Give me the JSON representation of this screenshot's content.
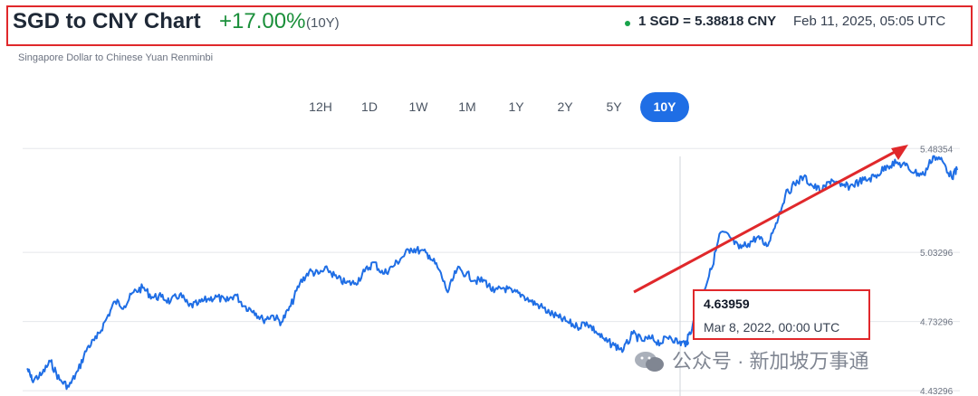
{
  "header": {
    "title": "SGD to CNY Chart",
    "change": "+17.00%",
    "period": "(10Y)",
    "rate": "1 SGD = 5.38818 CNY",
    "timestamp": "Feb 11, 2025, 05:05 UTC",
    "subtitle": "Singapore Dollar to Chinese Yuan Renminbi"
  },
  "ranges": [
    {
      "label": "12H",
      "active": false
    },
    {
      "label": "1D",
      "active": false
    },
    {
      "label": "1W",
      "active": false
    },
    {
      "label": "1M",
      "active": false
    },
    {
      "label": "1Y",
      "active": false
    },
    {
      "label": "2Y",
      "active": false
    },
    {
      "label": "5Y",
      "active": false
    },
    {
      "label": "10Y",
      "active": true
    }
  ],
  "tooltip": {
    "value": "4.63959",
    "date": "Mar 8, 2022, 00:00 UTC"
  },
  "watermark": "公众号 · 新加坡万事通",
  "colors": {
    "line": "#1f6ee5",
    "arrow": "#e0282b",
    "positive": "#1a8f3a",
    "grid": "#e5e7eb"
  },
  "chart_data": {
    "type": "line",
    "ytick_labels": [
      "5.48354",
      "5.03296",
      "4.73296",
      "4.43296"
    ],
    "yticks": [
      5.48354,
      5.03296,
      4.73296,
      4.43296
    ],
    "ylim": [
      4.41,
      5.52
    ],
    "xlim": [
      2015.0,
      2025.12
    ],
    "grid": true,
    "series": [
      {
        "x": [
          2015.05,
          2015.1,
          2015.2,
          2015.3,
          2015.4,
          2015.5,
          2015.6,
          2015.7,
          2015.8,
          2015.9,
          2016.0,
          2016.1,
          2016.2,
          2016.3,
          2016.4,
          2016.5,
          2016.6,
          2016.7,
          2016.8,
          2016.9,
          2017.0,
          2017.1,
          2017.2,
          2017.3,
          2017.4,
          2017.5,
          2017.6,
          2017.7,
          2017.8,
          2017.9,
          2018.0,
          2018.1,
          2018.2,
          2018.3,
          2018.4,
          2018.5,
          2018.6,
          2018.7,
          2018.8,
          2018.9,
          2019.0,
          2019.1,
          2019.2,
          2019.3,
          2019.4,
          2019.5,
          2019.6,
          2019.7,
          2019.8,
          2019.9,
          2020.0,
          2020.1,
          2020.2,
          2020.3,
          2020.4,
          2020.5,
          2020.6,
          2020.7,
          2020.8,
          2020.9,
          2021.0,
          2021.1,
          2021.2,
          2021.3,
          2021.4,
          2021.5,
          2021.6,
          2021.7,
          2021.8,
          2021.9,
          2022.0,
          2022.1,
          2022.18,
          2022.25,
          2022.35,
          2022.45,
          2022.55,
          2022.65,
          2022.75,
          2022.85,
          2022.95,
          2023.05,
          2023.15,
          2023.25,
          2023.35,
          2023.45,
          2023.55,
          2023.65,
          2023.75,
          2023.85,
          2023.95,
          2024.05,
          2024.15,
          2024.25,
          2024.35,
          2024.45,
          2024.55,
          2024.65,
          2024.75,
          2024.85,
          2024.95,
          2025.05,
          2025.11
        ],
        "y": [
          4.53,
          4.48,
          4.5,
          4.56,
          4.48,
          4.45,
          4.52,
          4.62,
          4.66,
          4.74,
          4.82,
          4.8,
          4.86,
          4.88,
          4.84,
          4.84,
          4.82,
          4.85,
          4.8,
          4.81,
          4.83,
          4.84,
          4.82,
          4.85,
          4.8,
          4.78,
          4.74,
          4.76,
          4.73,
          4.8,
          4.9,
          4.95,
          4.94,
          4.96,
          4.92,
          4.9,
          4.9,
          4.95,
          4.99,
          4.94,
          4.97,
          5.01,
          5.05,
          5.04,
          5.02,
          4.96,
          4.86,
          4.96,
          4.94,
          4.91,
          4.91,
          4.86,
          4.88,
          4.86,
          4.85,
          4.82,
          4.8,
          4.77,
          4.75,
          4.73,
          4.71,
          4.73,
          4.69,
          4.65,
          4.63,
          4.61,
          4.68,
          4.65,
          4.66,
          4.64,
          4.67,
          4.64,
          4.64,
          4.72,
          4.85,
          4.96,
          5.12,
          5.1,
          5.05,
          5.07,
          5.1,
          5.06,
          5.16,
          5.28,
          5.33,
          5.36,
          5.32,
          5.3,
          5.35,
          5.32,
          5.32,
          5.34,
          5.35,
          5.37,
          5.41,
          5.42,
          5.41,
          5.38,
          5.37,
          5.45,
          5.43,
          5.36,
          5.39
        ]
      }
    ]
  }
}
